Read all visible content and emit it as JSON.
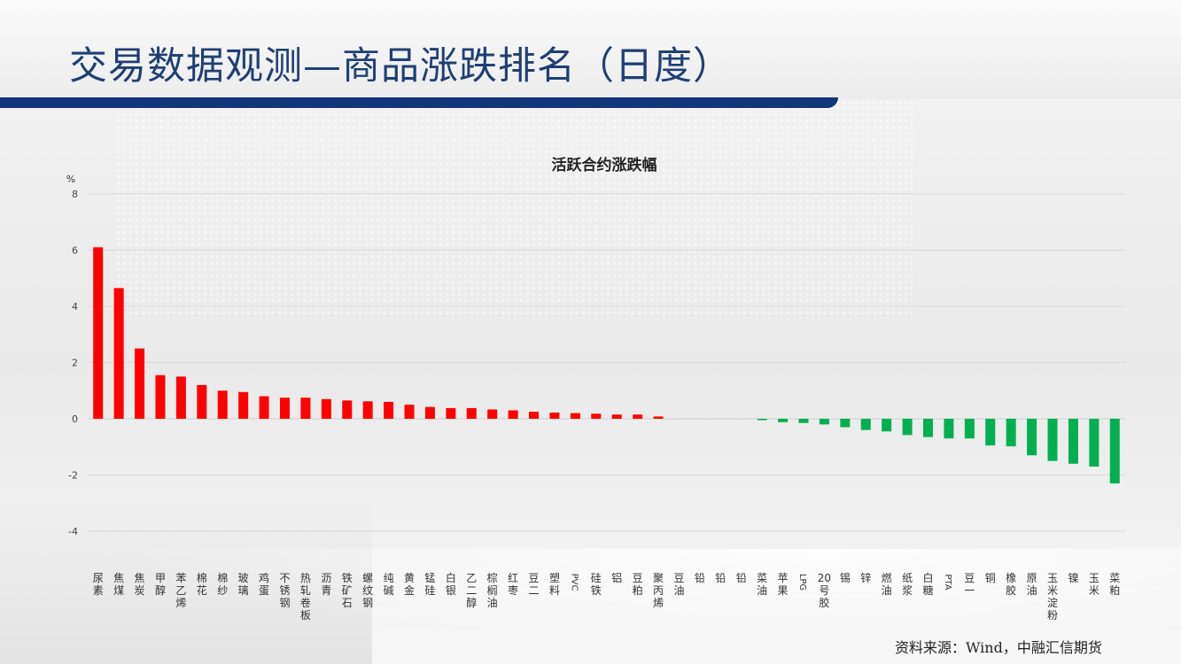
{
  "page": {
    "title": "交易数据观测—商品涨跌排名（日度）",
    "source": "资料来源：Wind，中融汇信期货"
  },
  "colors": {
    "up": "#ff0000",
    "down": "#00b050",
    "title_bar": "#13357a",
    "title_text": "#1f3f73"
  },
  "chart_data": {
    "type": "bar",
    "title": "活跃合约涨跌幅",
    "ylabel": "%",
    "ylim": [
      -4,
      8
    ],
    "yticks": [
      8,
      6,
      4,
      2,
      0,
      -2,
      -4
    ],
    "ytick_labels": [
      "8",
      "6",
      "4",
      "2",
      "0",
      "-2",
      "-4"
    ],
    "grid": true,
    "categories": [
      "尿素",
      "焦煤",
      "焦炭",
      "甲醇",
      "苯乙烯",
      "棉花",
      "棉纱",
      "玻璃",
      "鸡蛋",
      "不锈钢",
      "热轧卷板",
      "沥青",
      "铁矿石",
      "螺纹钢",
      "纯碱",
      "黄金",
      "锰硅",
      "白银",
      "乙二醇",
      "棕榈油",
      "红枣",
      "豆二",
      "塑料",
      "PVC",
      "硅铁",
      "铝",
      "豆粕",
      "聚丙烯",
      "豆油",
      "铅",
      "铅",
      "铅",
      "菜油",
      "苹果",
      "LPG",
      "20号胶",
      "锡",
      "锌",
      "燃油",
      "纸浆",
      "白糖",
      "PTA",
      "豆一",
      "铜",
      "橡胶",
      "原油",
      "玉米淀粉",
      "镍",
      "玉米",
      "菜粕"
    ],
    "values": [
      6.1,
      4.65,
      2.5,
      1.55,
      1.5,
      1.2,
      1.0,
      0.95,
      0.8,
      0.75,
      0.75,
      0.7,
      0.65,
      0.62,
      0.6,
      0.5,
      0.42,
      0.38,
      0.38,
      0.33,
      0.3,
      0.25,
      0.22,
      0.2,
      0.18,
      0.15,
      0.15,
      0.08,
      0.0,
      0.0,
      0.0,
      0.0,
      -0.05,
      -0.12,
      -0.15,
      -0.2,
      -0.3,
      -0.4,
      -0.45,
      -0.58,
      -0.65,
      -0.7,
      -0.7,
      -0.95,
      -0.98,
      -1.3,
      -1.5,
      -1.6,
      -1.7,
      -2.3
    ]
  }
}
